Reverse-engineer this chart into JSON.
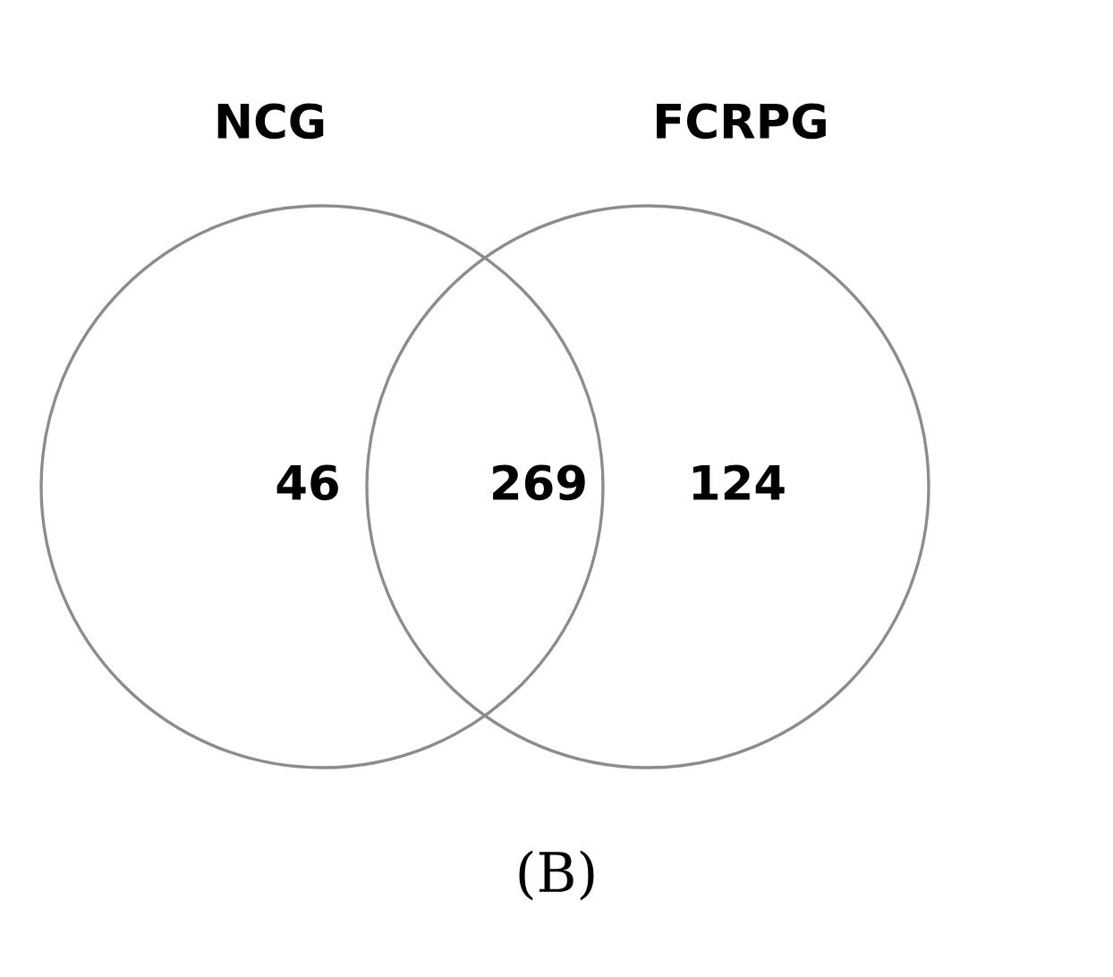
{
  "chart_data": {
    "type": "other",
    "categories": [
      null,
      null,
      null
    ],
    "values": [
      46,
      269,
      124
    ],
    "data_labels": true,
    "color": "#8c8c8c",
    "annotations": [
      "NCG",
      "FCRPG",
      "(B)"
    ]
  }
}
